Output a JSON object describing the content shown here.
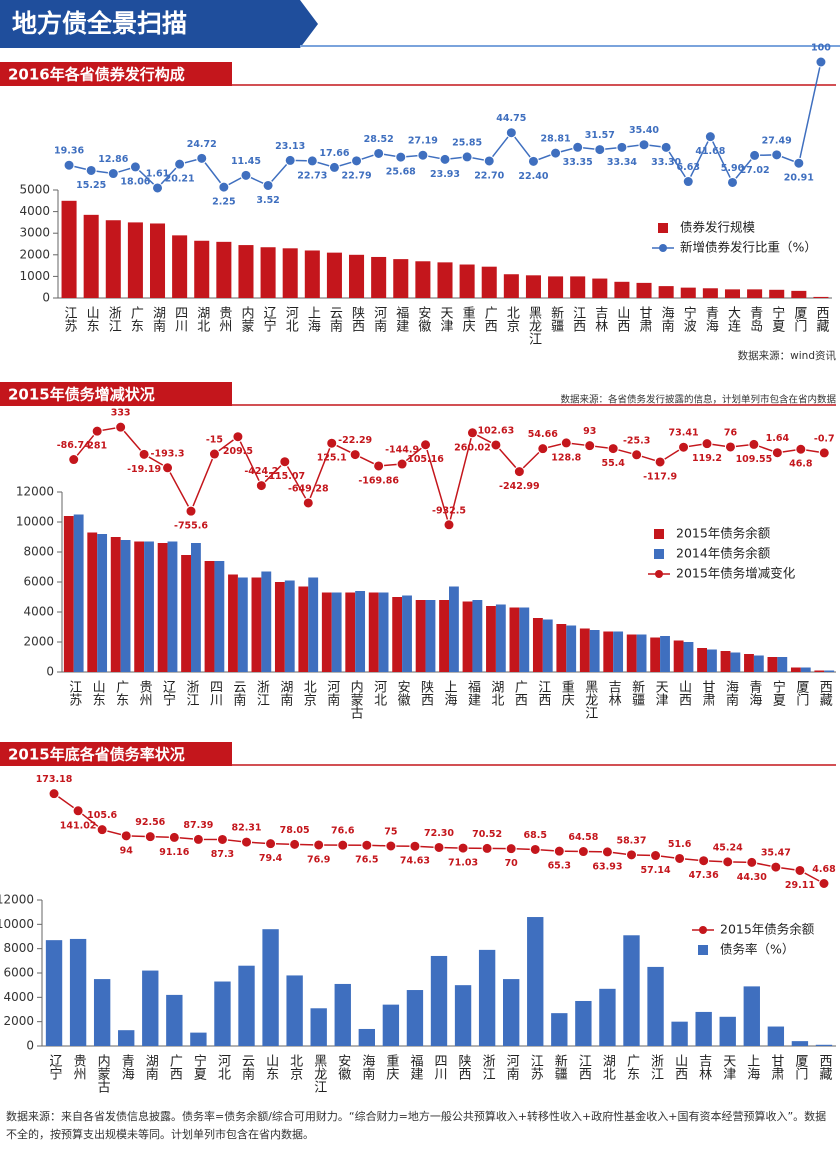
{
  "header": {
    "title": "地方债全景扫描"
  },
  "chart_data": [
    {
      "type": "combo",
      "title": "2016年各省债券发行构成",
      "source": "数据来源：wind资讯",
      "categories": [
        "江苏",
        "山东",
        "浙江",
        "广东",
        "湖南",
        "四川",
        "湖北",
        "贵州",
        "内蒙",
        "辽宁",
        "河北",
        "上海",
        "云南",
        "陕西",
        "河南",
        "福建",
        "安徽",
        "天津",
        "重庆",
        "广西",
        "北京",
        "黑龙江",
        "新疆",
        "江西",
        "吉林",
        "山西",
        "甘肃",
        "海南",
        "宁波",
        "青海",
        "大连",
        "青岛",
        "宁夏",
        "厦门",
        "西藏"
      ],
      "series": [
        {
          "name": "债券发行规模",
          "type": "bar",
          "color": "#c4161c",
          "values": [
            4500,
            3850,
            3600,
            3500,
            3450,
            2900,
            2650,
            2600,
            2450,
            2350,
            2300,
            2200,
            2100,
            2000,
            1900,
            1800,
            1700,
            1650,
            1550,
            1450,
            1100,
            1050,
            1000,
            1000,
            900,
            750,
            700,
            550,
            480,
            450,
            400,
            400,
            380,
            330,
            50
          ]
        },
        {
          "name": "新增债券发行比重（%）",
          "type": "line",
          "color": "#3f6fbf",
          "axis": "y2",
          "values": [
            19.36,
            15.25,
            12.86,
            18.06,
            1.61,
            20.21,
            24.72,
            2.25,
            11.45,
            3.52,
            23.13,
            22.73,
            17.66,
            22.79,
            28.52,
            25.68,
            27.19,
            23.93,
            25.85,
            22.7,
            44.75,
            22.4,
            28.81,
            33.35,
            31.57,
            33.34,
            35.4,
            33.3,
            6.63,
            41.68,
            5.9,
            27.02,
            27.49,
            20.91,
            100
          ],
          "value_labels": [
            "19.36",
            "15.25",
            "12.86",
            "18.06",
            "1.61",
            "20.21",
            "24.72",
            "2.25",
            "11.45",
            "3.52",
            "23.13",
            "22.73",
            "17.66",
            "22.79",
            "28.52",
            "25.68",
            "27.19",
            "23.93",
            "25.85",
            "22.70",
            "44.75",
            "22.40",
            "28.81",
            "33.35",
            "31.57",
            "33.34",
            "35.40",
            "33.30",
            "6.63",
            "41.68",
            "5.90",
            "27.02",
            "27.49",
            "20.91",
            "100"
          ]
        }
      ],
      "ylim": [
        0,
        5000
      ],
      "yticks": [
        0,
        1000,
        2000,
        3000,
        4000,
        5000
      ],
      "y2lim": [
        0,
        100
      ],
      "legend": "upper right"
    },
    {
      "type": "combo",
      "title": "2015年债务增减状况",
      "note": "数据来源：各省债务发行披露的信息，计划单列市包含在省内数据",
      "categories": [
        "江苏",
        "山东",
        "广东",
        "贵州",
        "辽宁",
        "浙江",
        "四川",
        "云南",
        "浙江",
        "湖南",
        "北京",
        "河南",
        "内蒙古",
        "河北",
        "安徽",
        "陕西",
        "上海",
        "福建",
        "湖北",
        "广西",
        "江西",
        "重庆",
        "黑龙江",
        "吉林",
        "新疆",
        "天津",
        "山西",
        "甘肃",
        "海南",
        "青海",
        "宁夏",
        "厦门",
        "西藏"
      ],
      "series": [
        {
          "name": "2015年债务余额",
          "type": "bar",
          "color": "#c4161c",
          "values": [
            10400,
            9300,
            9000,
            8700,
            8600,
            7800,
            7400,
            6500,
            6300,
            6000,
            5700,
            5300,
            5300,
            5300,
            5000,
            4800,
            4800,
            4700,
            4400,
            4300,
            3600,
            3200,
            2900,
            2700,
            2500,
            2300,
            2100,
            1600,
            1400,
            1200,
            1000,
            300,
            100
          ]
        },
        {
          "name": "2014年债务余额",
          "type": "bar",
          "color": "#3f6fbf",
          "values": [
            10500,
            9200,
            8800,
            8700,
            8700,
            8600,
            7400,
            6300,
            6700,
            6100,
            6300,
            5300,
            5400,
            5300,
            5100,
            4800,
            5700,
            4800,
            4500,
            4300,
            3500,
            3100,
            2800,
            2700,
            2500,
            2400,
            2000,
            1500,
            1300,
            1100,
            1000,
            300,
            100
          ]
        },
        {
          "name": "2015年债务增减变化",
          "type": "line",
          "color": "#c4161c",
          "axis": "y2",
          "values": [
            -86.74,
            281,
            333,
            -19.19,
            -193.3,
            -755.6,
            -15,
            209.5,
            -424.2,
            -115.07,
            -649.28,
            125.1,
            -22.29,
            -169.86,
            -144.9,
            105.16,
            -932.5,
            260.02,
            102.63,
            -242.99,
            54.66,
            128.8,
            93,
            55.4,
            -25.3,
            -117.9,
            73.41,
            119.2,
            76,
            109.55,
            1.64,
            46.8,
            -0.7
          ]
        }
      ],
      "ylim": [
        0,
        12000
      ],
      "yticks": [
        0,
        2000,
        4000,
        6000,
        8000,
        10000,
        12000
      ],
      "y2lim": [
        -1000,
        400
      ],
      "legend": "upper right"
    },
    {
      "type": "combo",
      "title": "2015年底各省债务率状况",
      "source": "数据来源：来自各省发债信息披露。债务率=债务余额/综合可用财力。“综合财力=地方一般公共预算收入+转移性收入+政府性基金收入+国有资本经营预算收入”。数据不全的，按预算支出规模未等同。计划单列市包含在省内数据。",
      "categories": [
        "辽宁",
        "贵州",
        "内蒙古",
        "青海",
        "湖南",
        "广西",
        "宁夏",
        "河北",
        "云南",
        "山东",
        "北京",
        "黑龙江",
        "安徽",
        "海南",
        "重庆",
        "福建",
        "四川",
        "陕西",
        "浙江",
        "河南",
        "江苏",
        "新疆",
        "江西",
        "湖北",
        "广东",
        "浙江",
        "山西",
        "吉林",
        "天津",
        "上海",
        "甘肃",
        "厦门",
        "西藏"
      ],
      "series": [
        {
          "name": "2015年债务余额",
          "type": "line",
          "color": "#c4161c",
          "axis": "y2",
          "values": [
            173.18,
            141.02,
            105.6,
            94,
            92.56,
            91.16,
            87.39,
            87.3,
            82.31,
            79.4,
            78.05,
            76.9,
            76.6,
            76.5,
            75,
            74.63,
            72.3,
            71.03,
            70.52,
            70,
            68.5,
            65.3,
            64.58,
            63.93,
            58.37,
            57.14,
            51.6,
            47.36,
            45.24,
            44.3,
            35.47,
            29.11,
            4.68
          ],
          "value_labels": [
            "173.18",
            "141.02",
            "105.6",
            "94",
            "92.56",
            "91.16",
            "87.39",
            "87.3",
            "82.31",
            "79.4",
            "78.05",
            "76.9",
            "76.6",
            "76.5",
            "75",
            "74.63",
            "72.30",
            "71.03",
            "70.52",
            "70",
            "68.5",
            "65.3",
            "64.58",
            "63.93",
            "58.37",
            "57.14",
            "51.6",
            "47.36",
            "45.24",
            "44.30",
            "35.47",
            "29.11",
            "4.68"
          ]
        },
        {
          "name": "债务率（%）",
          "type": "bar",
          "color": "#3f6fbf",
          "values": [
            8700,
            8800,
            5500,
            1300,
            6200,
            4200,
            1100,
            5300,
            6600,
            9600,
            5800,
            3100,
            5100,
            1400,
            3400,
            4600,
            7400,
            5000,
            7900,
            5500,
            10600,
            2700,
            3700,
            4700,
            9100,
            6500,
            2000,
            2800,
            2400,
            4900,
            1600,
            400,
            100
          ]
        }
      ],
      "ylim": [
        0,
        12000
      ],
      "yticks": [
        0,
        2000,
        4000,
        6000,
        8000,
        10000,
        12000
      ],
      "y2lim": [
        0,
        180
      ],
      "legend": "upper right"
    }
  ]
}
